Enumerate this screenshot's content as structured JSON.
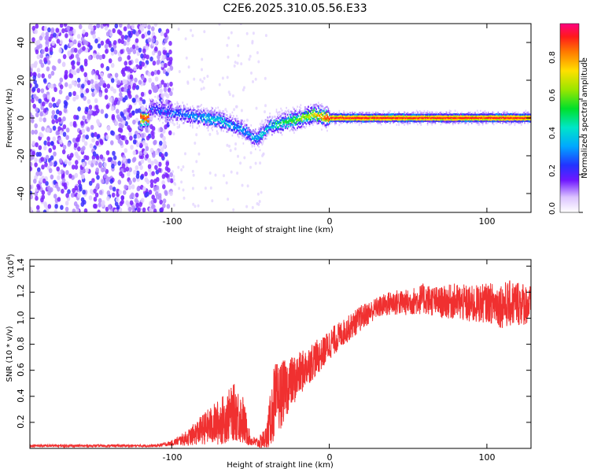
{
  "title": "C2E6.2025.310.05.56.E33",
  "chart_data": [
    {
      "type": "heatmap",
      "name": "spectrogram",
      "xlabel": "Height of straight line (km)",
      "ylabel": "Frequency (Hz)",
      "xlim": [
        -190,
        128
      ],
      "ylim": [
        -50,
        50
      ],
      "x_ticks": [
        -100,
        0,
        100
      ],
      "y_ticks": [
        -40,
        -20,
        0,
        20,
        40
      ],
      "x_tick_labels": [
        "-100",
        "0",
        "100"
      ],
      "y_tick_labels": [
        "-40",
        "-20",
        "0",
        "20",
        "40"
      ],
      "colorbar": {
        "label": "Normalized spectral amplitude",
        "range": [
          0,
          1
        ],
        "ticks": [
          0.0,
          0.2,
          0.4,
          0.6,
          0.8
        ],
        "tick_labels": [
          "0.0",
          "0.2",
          "0.4",
          "0.6",
          "0.8"
        ]
      },
      "description_ridge": [
        {
          "x": -115,
          "f": 5,
          "amp": 0.25
        },
        {
          "x": -100,
          "f": 3,
          "amp": 0.3
        },
        {
          "x": -85,
          "f": 1,
          "amp": 0.35
        },
        {
          "x": -70,
          "f": -1,
          "amp": 0.4
        },
        {
          "x": -58,
          "f": -5,
          "amp": 0.35
        },
        {
          "x": -46,
          "f": -11,
          "amp": 0.35
        },
        {
          "x": -38,
          "f": -4,
          "amp": 0.4
        },
        {
          "x": -28,
          "f": -2,
          "amp": 0.5
        },
        {
          "x": -18,
          "f": 0,
          "amp": 0.6
        },
        {
          "x": -10,
          "f": 2,
          "amp": 0.7
        },
        {
          "x": 0,
          "f": 0,
          "amp": 0.95
        },
        {
          "x": 60,
          "f": 0,
          "amp": 0.95
        },
        {
          "x": 128,
          "f": 0,
          "amp": 0.95
        }
      ]
    },
    {
      "type": "line",
      "name": "snr",
      "xlabel": "Height of straight line (km)",
      "ylabel": "SNR (10 * v/v)",
      "y_multiplier": "(x10",
      "y_multiplier_exp": "4",
      "y_multiplier_close": ")",
      "xlim": [
        -190,
        128
      ],
      "ylim": [
        0.0,
        1.45
      ],
      "x_ticks": [
        -100,
        0,
        100
      ],
      "y_ticks": [
        0.2,
        0.4,
        0.6,
        0.8,
        1.0,
        1.2,
        1.4
      ],
      "x_tick_labels": [
        "-100",
        "0",
        "100"
      ],
      "y_tick_labels": [
        "0.2",
        "0.4",
        "0.6",
        "0.8",
        "1.0",
        "1.2",
        "1.4"
      ],
      "color": "#f03030",
      "x": [
        -190,
        -150,
        -110,
        -100,
        -90,
        -80,
        -70,
        -60,
        -55,
        -50,
        -45,
        -40,
        -35,
        -30,
        -25,
        -20,
        -15,
        -10,
        -5,
        0,
        10,
        20,
        30,
        40,
        50,
        60,
        70,
        80,
        90,
        100,
        110,
        120,
        128
      ],
      "values": [
        0.02,
        0.02,
        0.02,
        0.04,
        0.08,
        0.15,
        0.2,
        0.28,
        0.22,
        0.06,
        0.04,
        0.08,
        0.35,
        0.42,
        0.5,
        0.55,
        0.62,
        0.68,
        0.72,
        0.8,
        0.9,
        1.0,
        1.08,
        1.12,
        1.12,
        1.15,
        1.12,
        1.13,
        1.1,
        1.12,
        1.1,
        1.12,
        1.1
      ],
      "noise_amplitude": [
        0.01,
        0.01,
        0.01,
        0.02,
        0.06,
        0.12,
        0.18,
        0.22,
        0.2,
        0.04,
        0.04,
        0.1,
        0.3,
        0.25,
        0.2,
        0.18,
        0.15,
        0.15,
        0.12,
        0.12,
        0.1,
        0.1,
        0.08,
        0.1,
        0.1,
        0.12,
        0.12,
        0.14,
        0.15,
        0.15,
        0.18,
        0.18,
        0.15
      ]
    }
  ]
}
